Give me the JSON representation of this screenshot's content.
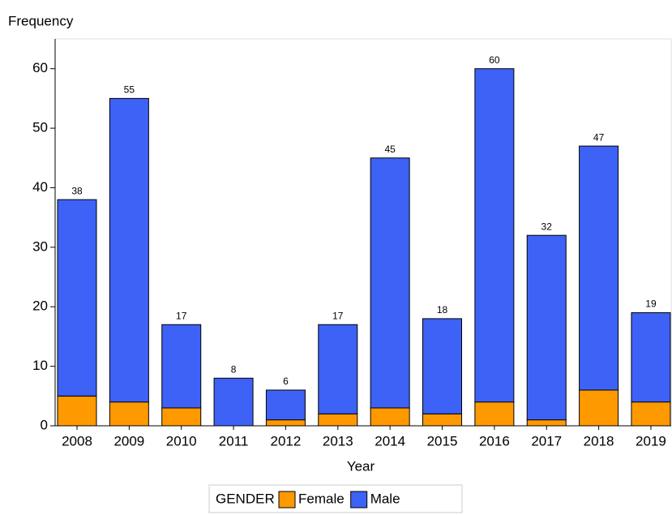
{
  "chart_data": {
    "type": "stacked_bar",
    "ylabel": "Frequency",
    "xlabel": "Year",
    "categories": [
      "2008",
      "2009",
      "2010",
      "2011",
      "2012",
      "2013",
      "2014",
      "2015",
      "2016",
      "2017",
      "2018",
      "2019"
    ],
    "series": [
      {
        "name": "Female",
        "color": "#ff9900",
        "values": [
          5,
          4,
          3,
          0,
          1,
          2,
          3,
          2,
          4,
          1,
          6,
          4
        ]
      },
      {
        "name": "Male",
        "color": "#3d62f5",
        "values": [
          33,
          51,
          14,
          8,
          5,
          15,
          42,
          16,
          56,
          31,
          41,
          15
        ]
      }
    ],
    "totals": [
      38,
      55,
      17,
      8,
      6,
      17,
      45,
      18,
      60,
      32,
      47,
      19
    ],
    "legend_title": "GENDER",
    "ylim": [
      0,
      65
    ],
    "yticks": [
      0,
      10,
      20,
      30,
      40,
      50,
      60
    ]
  }
}
